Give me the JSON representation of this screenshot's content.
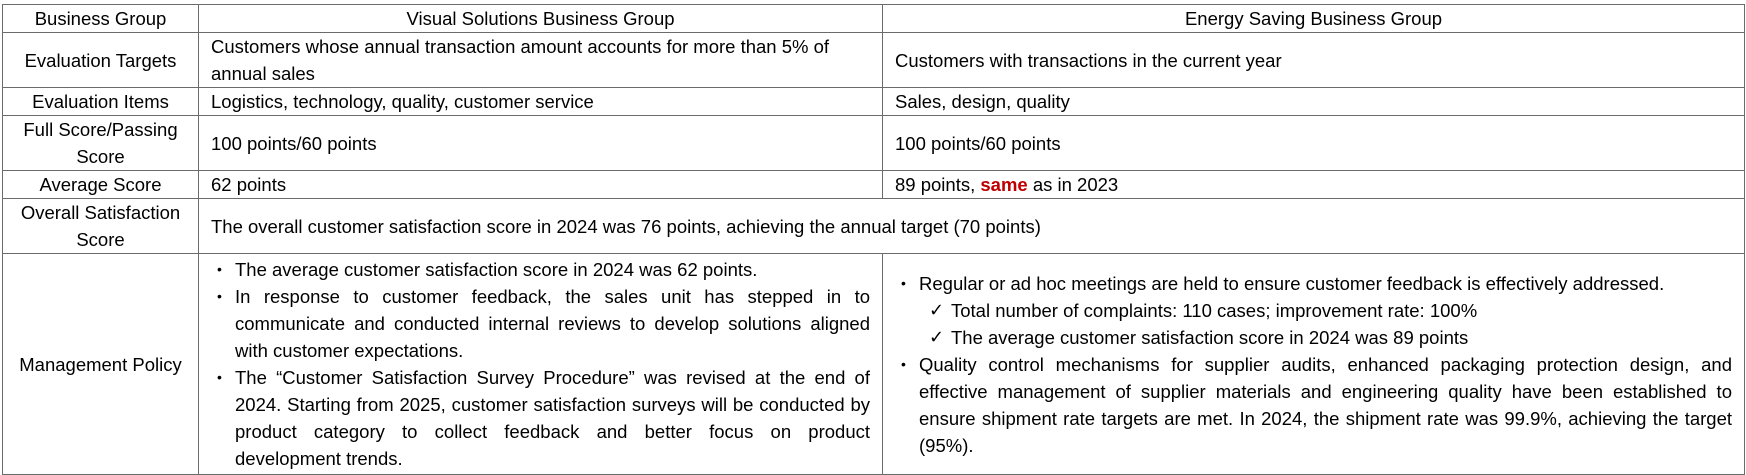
{
  "headers": [
    "Business Group",
    "Visual Solutions Business Group",
    "Energy Saving Business Group"
  ],
  "rows": {
    "targets": {
      "label": "Evaluation Targets",
      "vs": "Customers whose annual transaction amount accounts for more than 5% of annual sales",
      "es": "Customers with transactions in the current year"
    },
    "items": {
      "label": "Evaluation Items",
      "vs": "Logistics, technology, quality, customer service",
      "es": "Sales, design, quality"
    },
    "score": {
      "label": "Full Score/Passing Score",
      "vs": "100 points/60 points",
      "es": "100 points/60 points"
    },
    "avg": {
      "label": "Average Score",
      "vs": "62 points",
      "es_pre": "89 points, ",
      "es_em": "same",
      "es_post": " as in 2023"
    },
    "overall": {
      "label": "Overall Satisfaction Score",
      "text": "The overall customer satisfaction score in 2024 was 76 points, achieving the annual target (70 points)"
    },
    "policy": {
      "label": "Management Policy",
      "vs": [
        "The average customer satisfaction score in 2024 was 62 points.",
        "In response to customer feedback, the sales unit has stepped in to communicate and conducted internal reviews to develop solutions aligned with customer expectations.",
        "The “Customer Satisfaction Survey Procedure” was revised at the end of 2024. Starting from 2025, customer satisfaction surveys will be conducted by product category to collect feedback and better focus on product development trends."
      ],
      "es_1": "Regular or ad hoc meetings are held to ensure customer feedback is effectively addressed.",
      "es_checks": [
        "Total number of complaints: 110 cases; improvement rate: 100%",
        "The average customer satisfaction score in 2024 was 89 points"
      ],
      "es_2": "Quality control mechanisms for supplier audits, enhanced packaging protection design, and effective management of supplier materials and engineering quality have been established to ensure shipment rate targets are met. In 2024, the shipment rate was 99.9%, achieving the target (95%)."
    }
  }
}
